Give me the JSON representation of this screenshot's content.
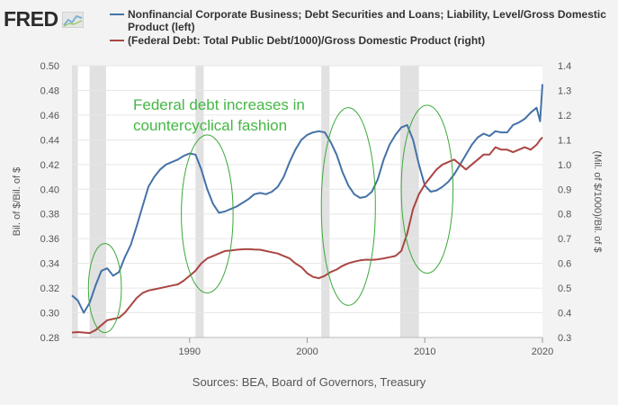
{
  "logo": {
    "text": "FRED",
    "icon": "fred-chart-icon"
  },
  "legend": [
    {
      "label": "Nonfinancial Corporate Business; Debt Securities and Loans; Liability, Level/Gross Domestic Product (left)",
      "color": "#4572a7"
    },
    {
      "label": "(Federal Debt: Total Public Debt/1000)/Gross Domestic Product (right)",
      "color": "#aa4643"
    }
  ],
  "source": "Sources: BEA, Board of Governors, Treasury",
  "chart_data": {
    "type": "line",
    "xlim": [
      1980,
      2020
    ],
    "x_ticks": [
      1990,
      2000,
      2010,
      2020
    ],
    "left_axis": {
      "label": "Bil. of $/Bil. of $",
      "ylim": [
        0.28,
        0.5
      ],
      "ticks": [
        "0.28",
        "0.30",
        "0.32",
        "0.34",
        "0.36",
        "0.38",
        "0.40",
        "0.42",
        "0.44",
        "0.46",
        "0.48",
        "0.50"
      ]
    },
    "right_axis": {
      "label": "(Mil. of $/1000)/Bil. of $",
      "ylim": [
        0.3,
        1.4
      ],
      "ticks": [
        "0.3",
        "0.4",
        "0.5",
        "0.6",
        "0.7",
        "0.8",
        "0.9",
        "1.0",
        "1.1",
        "1.2",
        "1.3",
        "1.4"
      ]
    },
    "recessions": [
      [
        1980.0,
        1980.5
      ],
      [
        1981.5,
        1982.9
      ],
      [
        1990.5,
        1991.2
      ],
      [
        2001.2,
        2001.9
      ],
      [
        2007.9,
        2009.5
      ]
    ],
    "annotation": {
      "text": [
        "Federal debt increases in",
        "countercyclical fashion"
      ],
      "color": "#44b844"
    },
    "ellipses": [
      {
        "cx": 1982.8,
        "cy_right": 0.5,
        "rx_years": 1.4,
        "ry_right": 0.18
      },
      {
        "cx": 1991.5,
        "cy_right": 0.8,
        "rx_years": 2.2,
        "ry_right": 0.32
      },
      {
        "cx": 2003.5,
        "cy_right": 0.83,
        "rx_years": 2.3,
        "ry_right": 0.4
      },
      {
        "cx": 2010.2,
        "cy_right": 0.9,
        "rx_years": 2.2,
        "ry_right": 0.34
      }
    ],
    "series": [
      {
        "name": "Nonfinancial Corporate Business; Debt Securities and Loans; Liability, Level/Gross Domestic Product (left)",
        "axis": "left",
        "color": "#4572a7",
        "x": [
          1980,
          1980.5,
          1981,
          1981.5,
          1982,
          1982.5,
          1983,
          1983.5,
          1984,
          1984.5,
          1985,
          1985.5,
          1986,
          1986.5,
          1987,
          1987.5,
          1988,
          1988.5,
          1989,
          1989.5,
          1990,
          1990.5,
          1991,
          1991.5,
          1992,
          1992.5,
          1993,
          1993.5,
          1994,
          1994.5,
          1995,
          1995.5,
          1996,
          1996.5,
          1997,
          1997.5,
          1998,
          1998.5,
          1999,
          1999.5,
          2000,
          2000.5,
          2001,
          2001.5,
          2002,
          2002.5,
          2003,
          2003.5,
          2004,
          2004.5,
          2005,
          2005.5,
          2006,
          2006.5,
          2007,
          2007.5,
          2008,
          2008.5,
          2009,
          2009.5,
          2010,
          2010.5,
          2011,
          2011.5,
          2012,
          2012.5,
          2013,
          2013.5,
          2014,
          2014.5,
          2015,
          2015.5,
          2016,
          2016.5,
          2017,
          2017.5,
          2018,
          2018.5,
          2019,
          2019.5,
          2019.8,
          2020
        ],
        "values": [
          0.314,
          0.31,
          0.3,
          0.308,
          0.322,
          0.334,
          0.336,
          0.33,
          0.333,
          0.345,
          0.355,
          0.37,
          0.386,
          0.402,
          0.41,
          0.416,
          0.42,
          0.422,
          0.424,
          0.427,
          0.429,
          0.428,
          0.416,
          0.4,
          0.388,
          0.381,
          0.382,
          0.384,
          0.386,
          0.389,
          0.392,
          0.396,
          0.397,
          0.396,
          0.398,
          0.402,
          0.41,
          0.422,
          0.432,
          0.44,
          0.444,
          0.446,
          0.447,
          0.446,
          0.438,
          0.428,
          0.414,
          0.403,
          0.396,
          0.393,
          0.394,
          0.398,
          0.408,
          0.424,
          0.436,
          0.444,
          0.45,
          0.452,
          0.44,
          0.42,
          0.403,
          0.398,
          0.399,
          0.402,
          0.406,
          0.412,
          0.42,
          0.428,
          0.436,
          0.442,
          0.445,
          0.443,
          0.447,
          0.446,
          0.446,
          0.452,
          0.454,
          0.457,
          0.462,
          0.466,
          0.455,
          0.485
        ]
      },
      {
        "name": "(Federal Debt: Total Public Debt/1000)/Gross Domestic Product (right)",
        "axis": "right",
        "color": "#aa4643",
        "x": [
          1980,
          1980.5,
          1981,
          1981.5,
          1982,
          1982.5,
          1983,
          1983.5,
          1984,
          1984.5,
          1985,
          1985.5,
          1986,
          1986.5,
          1987,
          1987.5,
          1988,
          1988.5,
          1989,
          1989.5,
          1990,
          1990.5,
          1991,
          1991.5,
          1992,
          1992.5,
          1993,
          1993.5,
          1994,
          1994.5,
          1995,
          1995.5,
          1996,
          1996.5,
          1997,
          1997.5,
          1998,
          1998.5,
          1999,
          1999.5,
          2000,
          2000.5,
          2001,
          2001.5,
          2002,
          2002.5,
          2003,
          2003.5,
          2004,
          2004.5,
          2005,
          2005.5,
          2006,
          2006.5,
          2007,
          2007.5,
          2008,
          2008.5,
          2009,
          2009.5,
          2010,
          2010.5,
          2011,
          2011.5,
          2012,
          2012.5,
          2013,
          2013.5,
          2014,
          2014.5,
          2015,
          2015.5,
          2016,
          2016.5,
          2017,
          2017.5,
          2018,
          2018.5,
          2019,
          2019.5,
          2019.8,
          2020
        ],
        "values": [
          0.32,
          0.322,
          0.32,
          0.318,
          0.33,
          0.35,
          0.37,
          0.375,
          0.38,
          0.4,
          0.43,
          0.46,
          0.48,
          0.49,
          0.495,
          0.5,
          0.505,
          0.51,
          0.515,
          0.53,
          0.55,
          0.57,
          0.6,
          0.62,
          0.63,
          0.64,
          0.65,
          0.652,
          0.655,
          0.657,
          0.658,
          0.656,
          0.655,
          0.65,
          0.645,
          0.64,
          0.63,
          0.62,
          0.6,
          0.585,
          0.56,
          0.545,
          0.54,
          0.55,
          0.565,
          0.575,
          0.59,
          0.6,
          0.607,
          0.612,
          0.615,
          0.614,
          0.616,
          0.62,
          0.625,
          0.63,
          0.65,
          0.72,
          0.82,
          0.88,
          0.92,
          0.95,
          0.98,
          1.0,
          1.01,
          1.02,
          1.0,
          0.98,
          1.0,
          1.02,
          1.04,
          1.04,
          1.07,
          1.06,
          1.06,
          1.05,
          1.06,
          1.07,
          1.06,
          1.08,
          1.1,
          1.11
        ]
      }
    ]
  }
}
